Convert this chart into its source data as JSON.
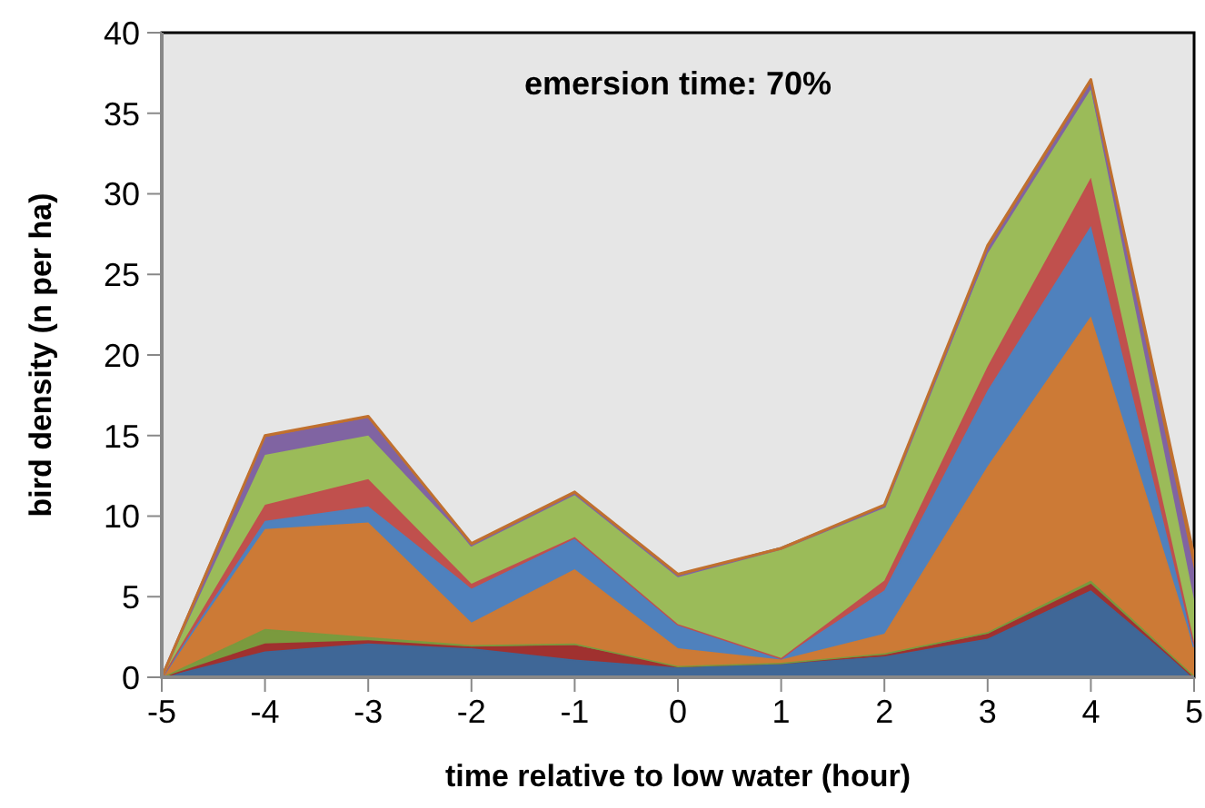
{
  "chart_data": {
    "type": "area",
    "stacked": true,
    "xlabel": "time relative to low water (hour)",
    "ylabel": "bird density (n per ha)",
    "annotations": [
      "emersion time: 70%"
    ],
    "x": [
      -5,
      -4,
      -3,
      -2,
      -1,
      0,
      1,
      2,
      3,
      4,
      5
    ],
    "xlim": [
      -5,
      5
    ],
    "xticks": [
      -5,
      -4,
      -3,
      -2,
      -1,
      0,
      1,
      2,
      3,
      4,
      5
    ],
    "ylim": [
      0,
      40
    ],
    "yticks": [
      0,
      5,
      10,
      15,
      20,
      25,
      30,
      35,
      40
    ],
    "grid": false,
    "legend": false,
    "series": [
      {
        "color": "#3f6797",
        "values": [
          0,
          1.6,
          2.1,
          1.8,
          1.1,
          0.6,
          0.9,
          1.3,
          2.4,
          5.4,
          0
        ]
      },
      {
        "color": "#a0312f",
        "values": [
          0,
          0.5,
          0.2,
          0.1,
          0.9,
          0.1,
          0,
          0.1,
          0.3,
          0.4,
          0
        ]
      },
      {
        "color": "#7a9a3e",
        "values": [
          0,
          0.9,
          0.2,
          0.1,
          0.1,
          0,
          0,
          0.1,
          0.1,
          0.2,
          0.1
        ]
      },
      {
        "color": "#cc7a36",
        "values": [
          0,
          6.2,
          7.1,
          1.4,
          4.6,
          1.1,
          0.2,
          1.2,
          10.3,
          16.4,
          1.7
        ]
      },
      {
        "color": "#4f81bd",
        "values": [
          0,
          0.5,
          1.0,
          2.1,
          1.9,
          1.5,
          0.1,
          2.7,
          4.7,
          5.6,
          0.1
        ]
      },
      {
        "color": "#c0504d",
        "values": [
          0,
          1.0,
          1.7,
          0.3,
          0.1,
          0,
          0,
          0.6,
          1.5,
          3.0,
          0.3
        ]
      },
      {
        "color": "#9bbb59",
        "values": [
          0,
          3.1,
          2.7,
          2.4,
          2.7,
          3.0,
          6.8,
          4.6,
          7.0,
          5.5,
          2.6
        ]
      },
      {
        "color": "#8064a2",
        "values": [
          0,
          1.1,
          1.1,
          0,
          0,
          0,
          0,
          0,
          0.3,
          0.4,
          1.9
        ]
      },
      {
        "color": "#c0702e",
        "values": [
          0,
          0.1,
          0.1,
          0.1,
          0.1,
          0.1,
          0,
          0.1,
          0.2,
          0.2,
          0.8
        ]
      }
    ]
  }
}
